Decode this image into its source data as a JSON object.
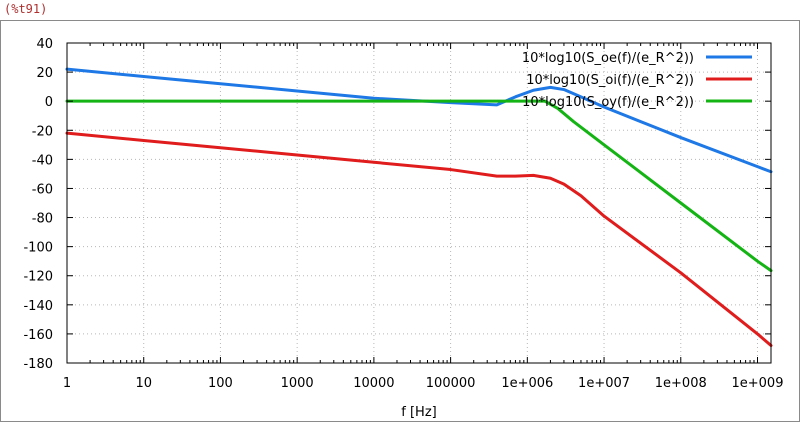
{
  "cell_label": "(%t91)",
  "chart_data": {
    "type": "line",
    "title": "",
    "xlabel": "f [Hz]",
    "ylabel": "",
    "xscale": "log",
    "xlim": [
      1,
      1500000000
    ],
    "ylim": [
      -180,
      40
    ],
    "grid": true,
    "legend_position": "top-right",
    "xticks": [
      1,
      10,
      100,
      1000,
      10000,
      100000,
      1000000,
      10000000,
      100000000,
      1000000000
    ],
    "xtick_labels": [
      "1",
      "10",
      "100",
      "1000",
      "10000",
      "100000",
      "1e+006",
      "1e+007",
      "1e+008",
      "1e+009"
    ],
    "yticks": [
      40,
      20,
      0,
      -20,
      -40,
      -60,
      -80,
      -100,
      -120,
      -140,
      -160,
      -180
    ],
    "ytick_labels": [
      "40",
      "20",
      "0",
      "-20",
      "-40",
      "-60",
      "-80",
      "-100",
      "-120",
      "-140",
      "-160",
      "-180"
    ],
    "series": [
      {
        "name": "10*log10(S_oe(f)/(e_R^2))",
        "color": "#1e78e6",
        "x": [
          1,
          10,
          100,
          1000,
          10000,
          100000,
          400000,
          700000,
          1200000,
          2000000,
          3000000,
          5000000,
          10000000,
          100000000,
          1000000000,
          1500000000
        ],
        "y": [
          22,
          17,
          12,
          7,
          2,
          -1,
          -2.5,
          3,
          7.5,
          9.5,
          8,
          3,
          -4,
          -25,
          -45,
          -48.5
        ]
      },
      {
        "name": "10*log10(S_oi(f)/(e_R^2))",
        "color": "#e01c1c",
        "x": [
          1,
          10,
          100,
          1000,
          10000,
          100000,
          400000,
          700000,
          1200000,
          2000000,
          3000000,
          5000000,
          10000000,
          100000000,
          1000000000,
          1500000000
        ],
        "y": [
          -22,
          -27,
          -32,
          -37,
          -42,
          -47,
          -51.5,
          -51.5,
          -51,
          -53,
          -57,
          -65,
          -79,
          -118,
          -160,
          -168
        ]
      },
      {
        "name": "10*log10(S_oy(f)/(e_R^2))",
        "color": "#14b414",
        "x": [
          1,
          10,
          100,
          1000,
          10000,
          100000,
          1000000,
          1700000,
          2500000,
          4000000,
          10000000,
          100000000,
          1000000000,
          1500000000
        ],
        "y": [
          0,
          0,
          0,
          0,
          0,
          0,
          0,
          0,
          -5,
          -14,
          -30,
          -70,
          -110,
          -116.5
        ]
      }
    ]
  }
}
